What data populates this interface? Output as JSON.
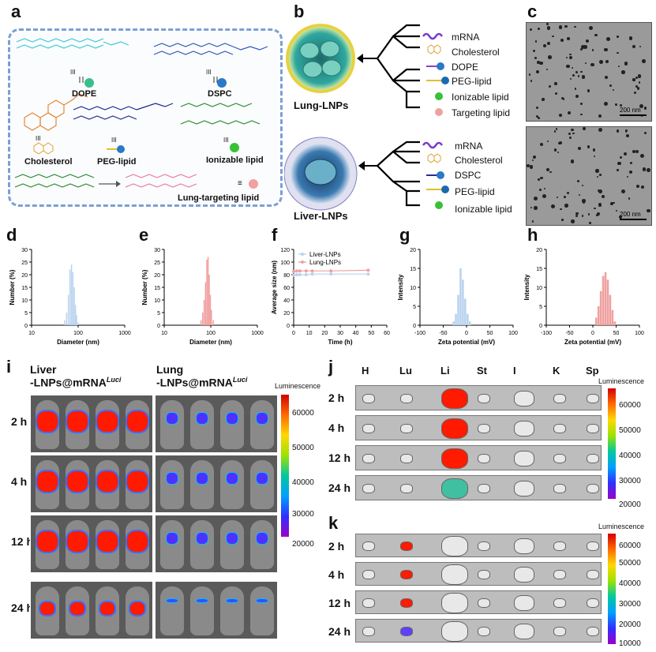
{
  "panels": {
    "a": "a",
    "b": "b",
    "c": "c",
    "d": "d",
    "e": "e",
    "f": "f",
    "g": "g",
    "h": "h",
    "i": "i",
    "j": "j",
    "k": "k"
  },
  "panel_a": {
    "labels": [
      "DOPE",
      "DSPC",
      "Cholesterol",
      "PEG-lipid",
      "Ionizable lipid",
      "Lung-targeting lipid"
    ],
    "equiv": "III",
    "equals": "≡"
  },
  "panel_b": {
    "lung_title": "Lung-LNPs",
    "liver_title": "Liver-LNPs",
    "lung_components": [
      "mRNA",
      "Cholesterol",
      "DOPE",
      "PEG-lipid",
      "Ionizable lipid",
      "Targeting lipid"
    ],
    "liver_components": [
      "mRNA",
      "Cholesterol",
      "DSPC",
      "PEG-lipid",
      "Ionizable lipid"
    ]
  },
  "panel_c": {
    "scale_top": "200 nm",
    "scale_bottom": "200 nm"
  },
  "hist_d": {
    "ylabel": "Number (%)",
    "xlabel": "Diameter (nm)",
    "yticks": [
      "0",
      "5",
      "10",
      "15",
      "20",
      "25",
      "30"
    ],
    "xticks": [
      "10",
      "100",
      "1000"
    ],
    "color": "#b9d3ee",
    "bins_nm": [
      50,
      55,
      60,
      65,
      70,
      75,
      80,
      85,
      90,
      95
    ],
    "values": [
      2,
      5,
      12,
      22,
      24,
      21,
      15,
      8,
      4,
      1
    ]
  },
  "hist_e": {
    "ylabel": "Number (%)",
    "xlabel": "Diameter (nm)",
    "yticks": [
      "0",
      "5",
      "10",
      "15",
      "20",
      "25",
      "30"
    ],
    "xticks": [
      "10",
      "100",
      "1000"
    ],
    "color": "#f0a0a0",
    "bins_nm": [
      60,
      65,
      70,
      75,
      80,
      85,
      90,
      95,
      100,
      110
    ],
    "values": [
      2,
      5,
      10,
      17,
      26,
      27,
      20,
      12,
      6,
      2
    ]
  },
  "chart_f": {
    "type": "line",
    "ylabel": "Average size (nm)",
    "xlabel": "Time (h)",
    "yticks": [
      "0",
      "20",
      "40",
      "60",
      "80",
      "100",
      "120"
    ],
    "xticks": [
      "0",
      "10",
      "20",
      "30",
      "40",
      "50",
      "60"
    ],
    "xlim": [
      0,
      60
    ],
    "ylim": [
      0,
      120
    ],
    "series": [
      {
        "name": "Liver-LNPs",
        "color": "#b9d3ee",
        "x": [
          0,
          2,
          4,
          8,
          12,
          24,
          48
        ],
        "y": [
          79,
          80,
          80,
          80,
          81,
          81,
          81
        ]
      },
      {
        "name": "Lung-LNPs",
        "color": "#f0a0a0",
        "x": [
          0,
          2,
          4,
          8,
          12,
          24,
          48
        ],
        "y": [
          85,
          86,
          86,
          86,
          86,
          86,
          87
        ]
      }
    ]
  },
  "hist_g": {
    "ylabel": "Intensity",
    "xlabel": "Zeta potential (mV)",
    "yticks": [
      "0",
      "5",
      "10",
      "15",
      "20"
    ],
    "xticks": [
      "-100",
      "-50",
      "0",
      "50",
      "100"
    ],
    "color": "#b9d3ee",
    "bins_mv": [
      -30,
      -25,
      -20,
      -15,
      -10,
      -5,
      0,
      5
    ],
    "values": [
      1,
      3,
      8,
      15,
      12,
      7,
      3,
      1
    ]
  },
  "hist_h": {
    "ylabel": "Intensity",
    "xlabel": "Zeta potential (mV)",
    "yticks": [
      "0",
      "5",
      "10",
      "15",
      "20"
    ],
    "xticks": [
      "-100",
      "-50",
      "0",
      "50",
      "100"
    ],
    "color": "#f0a0a0",
    "bins_mv": [
      5,
      10,
      15,
      20,
      25,
      30,
      35,
      40,
      45
    ],
    "values": [
      2,
      5,
      9,
      13,
      14,
      12,
      8,
      4,
      1
    ]
  },
  "panel_i": {
    "liver_title_1": "Liver",
    "liver_title_2": "-LNPs@mRNA",
    "lung_title_1": "Lung",
    "lung_title_2": "-LNPs@mRNA",
    "superscript": "Luci",
    "times": [
      "2 h",
      "4 h",
      "12 h",
      "24 h"
    ],
    "colorbar_title": "Luminescence",
    "colorbar_ticks": [
      "60000",
      "50000",
      "40000",
      "30000",
      "20000"
    ]
  },
  "panel_j": {
    "organs": [
      "H",
      "Lu",
      "Li",
      "St",
      "I",
      "K",
      "Sp"
    ],
    "times": [
      "2 h",
      "4 h",
      "12 h",
      "24 h"
    ],
    "colorbar_title": "Luminescence",
    "colorbar_ticks": [
      "60000",
      "50000",
      "40000",
      "30000",
      "20000"
    ]
  },
  "panel_k": {
    "times": [
      "2 h",
      "4 h",
      "12 h",
      "24 h"
    ],
    "colorbar_title": "Luminescence",
    "colorbar_ticks": [
      "60000",
      "50000",
      "40000",
      "30000",
      "20000",
      "10000"
    ]
  }
}
